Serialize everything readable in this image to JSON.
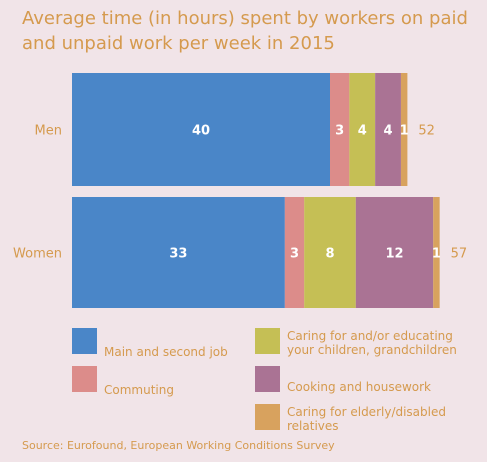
{
  "title": "Average time (in hours) spent by workers on paid and unpaid work per week in 2015",
  "source": "Source: Eurofound, European Working Conditions Survey",
  "chart_data": {
    "type": "bar",
    "orientation": "horizontal",
    "stacked": true,
    "categories": [
      "Men",
      "Women"
    ],
    "totals": [
      52,
      57
    ],
    "series": [
      {
        "name": "Main and second job",
        "values": [
          40,
          33
        ],
        "color": "#4a86c8"
      },
      {
        "name": "Commuting",
        "values": [
          3,
          3
        ],
        "color": "#dc8c8a"
      },
      {
        "name": "Caring for and/or educating your children, grandchildren",
        "values": [
          4,
          8
        ],
        "color": "#c5bf55"
      },
      {
        "name": "Cooking and housework",
        "values": [
          4,
          12
        ],
        "color": "#aa7394"
      },
      {
        "name": "Caring for elderly/disabled relatives",
        "values": [
          1,
          1
        ],
        "color": "#d8a25e"
      }
    ],
    "grid": false,
    "legend": "bottom"
  }
}
